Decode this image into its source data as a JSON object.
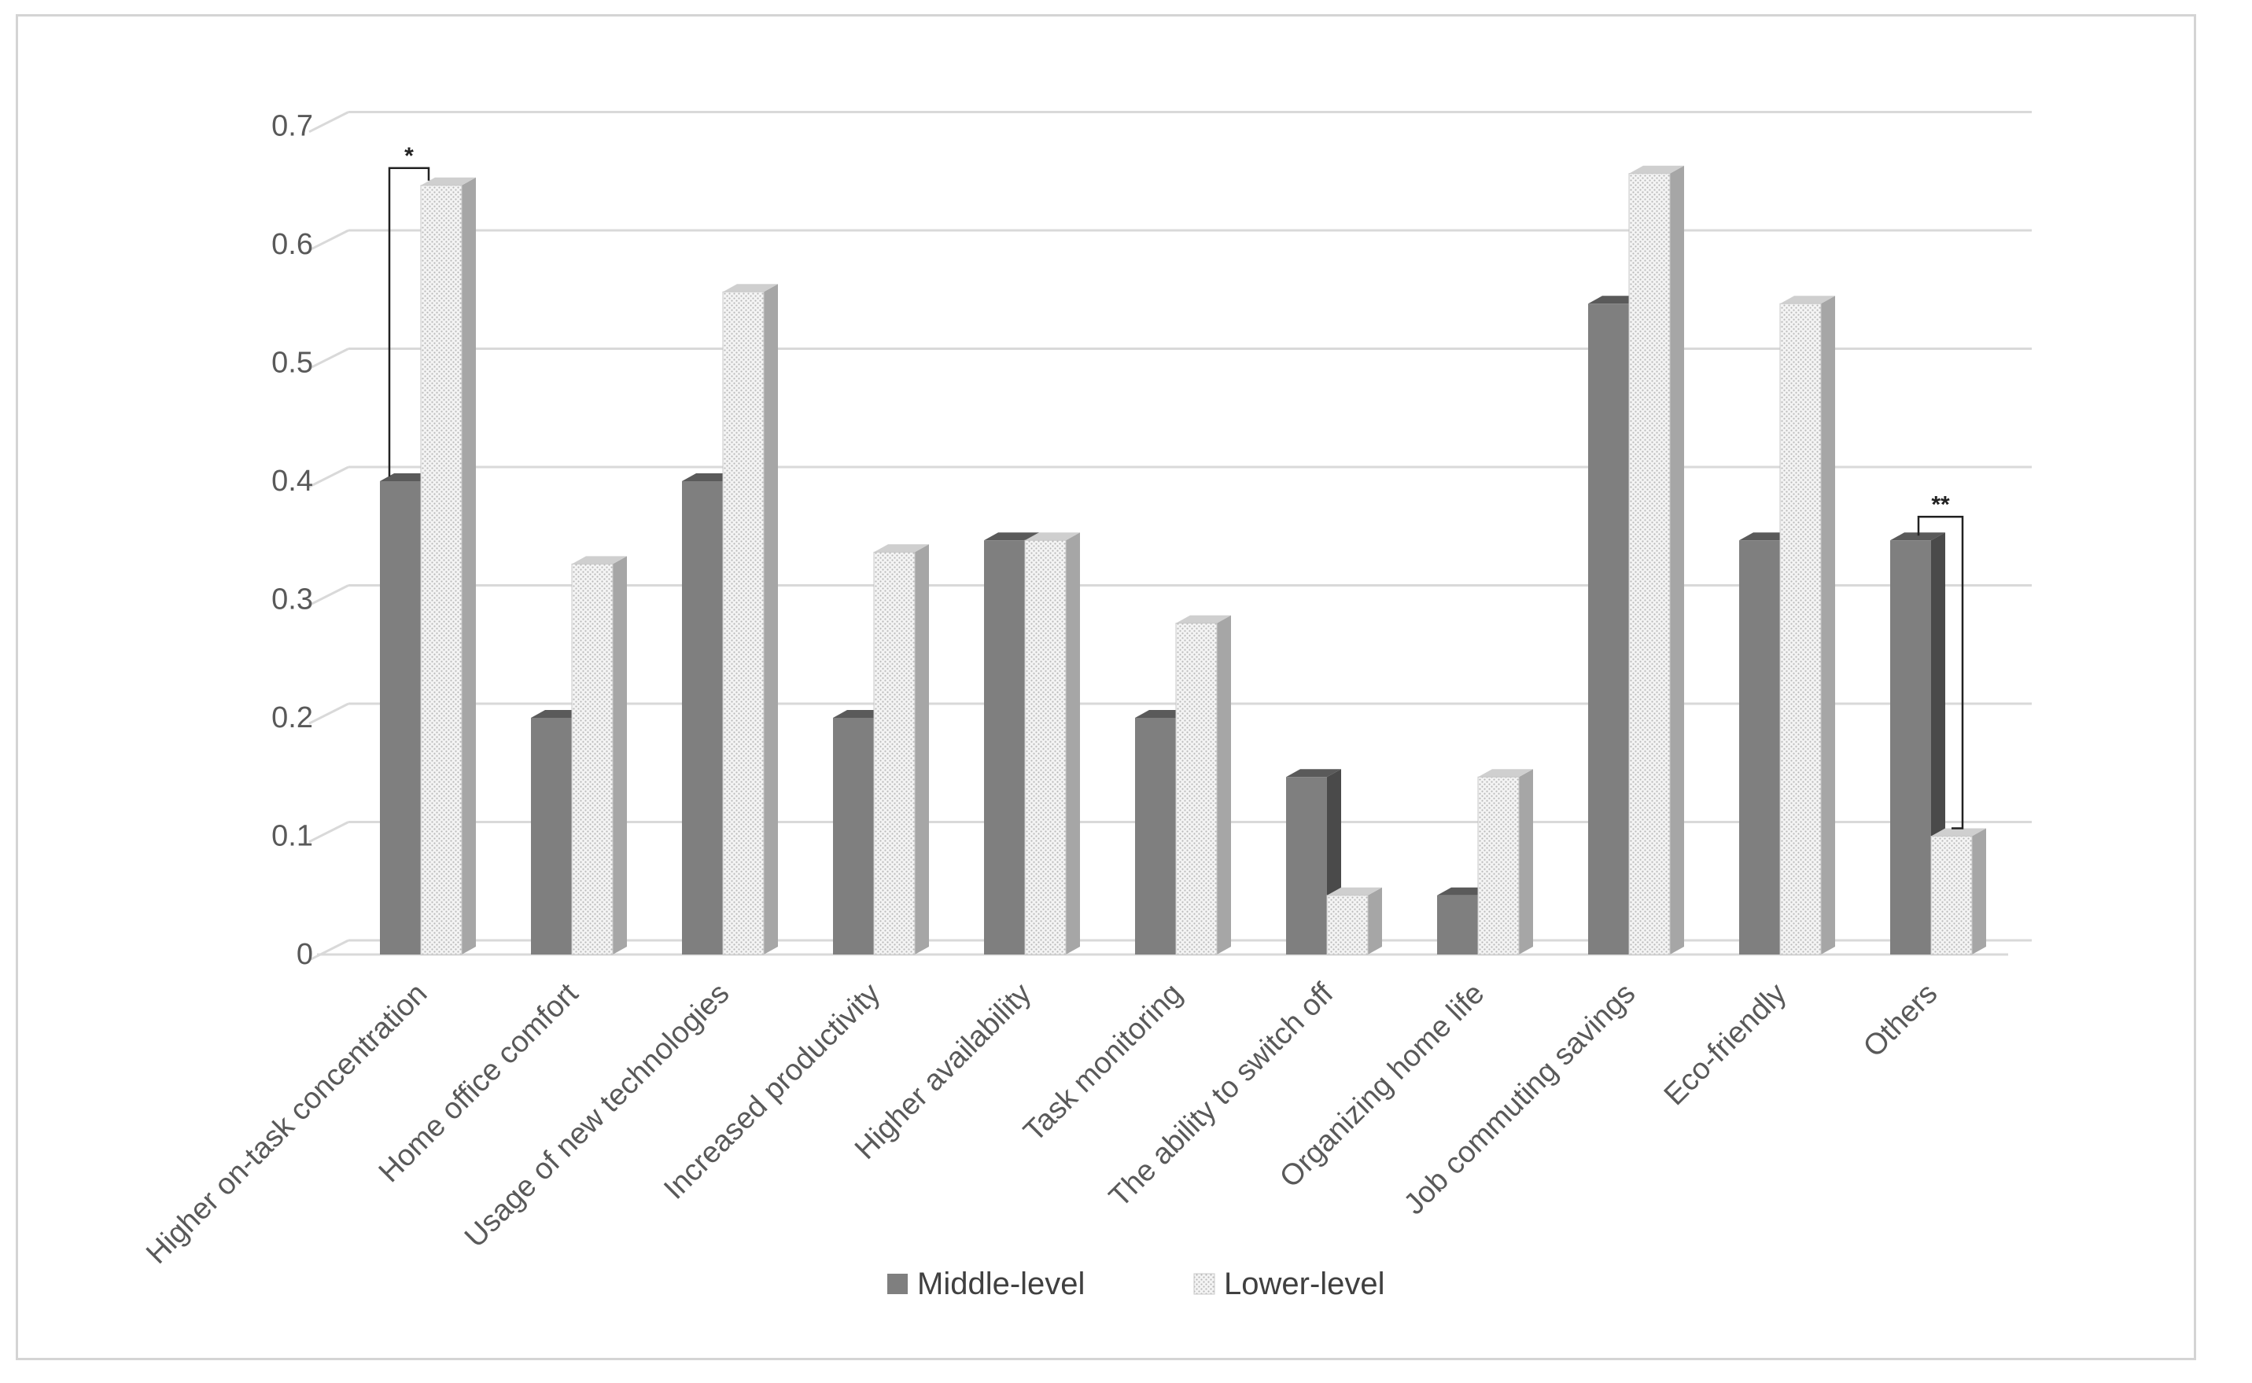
{
  "chart_data": {
    "type": "bar",
    "style": "3d-clustered",
    "categories": [
      "Higher on-task concentration",
      "Home office comfort",
      "Usage of new technologies",
      "Increased productivity",
      "Higher availability",
      "Task monitoring",
      "The ability to switch off",
      "Organizing home life",
      "Job commuting savings",
      "Eco-friendly",
      "Others"
    ],
    "series": [
      {
        "name": "Middle-level",
        "color": "#7f7f7f",
        "pattern": "solid",
        "values": [
          0.4,
          0.2,
          0.4,
          0.2,
          0.35,
          0.2,
          0.15,
          0.05,
          0.55,
          0.35,
          0.35
        ]
      },
      {
        "name": "Lower-level",
        "color": "#eeeeee",
        "pattern": "dotted",
        "values": [
          0.65,
          0.33,
          0.56,
          0.34,
          0.35,
          0.28,
          0.05,
          0.15,
          0.66,
          0.55,
          0.1
        ]
      }
    ],
    "ylim": [
      0,
      0.7
    ],
    "yticks": [
      "0",
      "0.1",
      "0.2",
      "0.3",
      "0.4",
      "0.5",
      "0.6",
      "0.7"
    ],
    "grid": true,
    "legend": "bottom",
    "annotations": [
      {
        "category": "Higher on-task concentration",
        "label": "*"
      },
      {
        "category": "Others",
        "label": "**"
      }
    ],
    "title": "",
    "xlabel": "",
    "ylabel": ""
  }
}
